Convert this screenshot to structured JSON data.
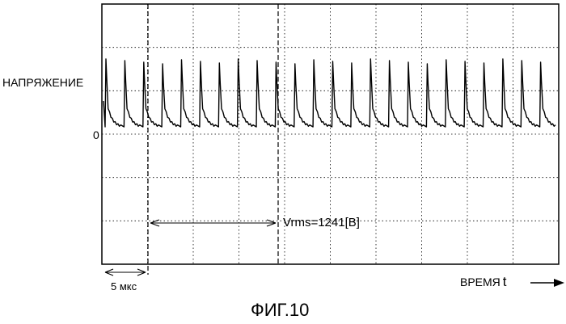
{
  "figure": {
    "y_axis_label": "НАПРЯЖЕНИЕ",
    "zero_label": "0",
    "x_axis_label": "ВРЕМЯ",
    "x_axis_symbol": "t",
    "division_label": "5 мкс",
    "measurement": "Vrms=1241[В]",
    "caption": "ФИГ.10"
  },
  "waveform": {
    "pulse_count": 24
  },
  "colors": {
    "trace": "#000000",
    "grid": "#000000",
    "background": "#ffffff"
  }
}
